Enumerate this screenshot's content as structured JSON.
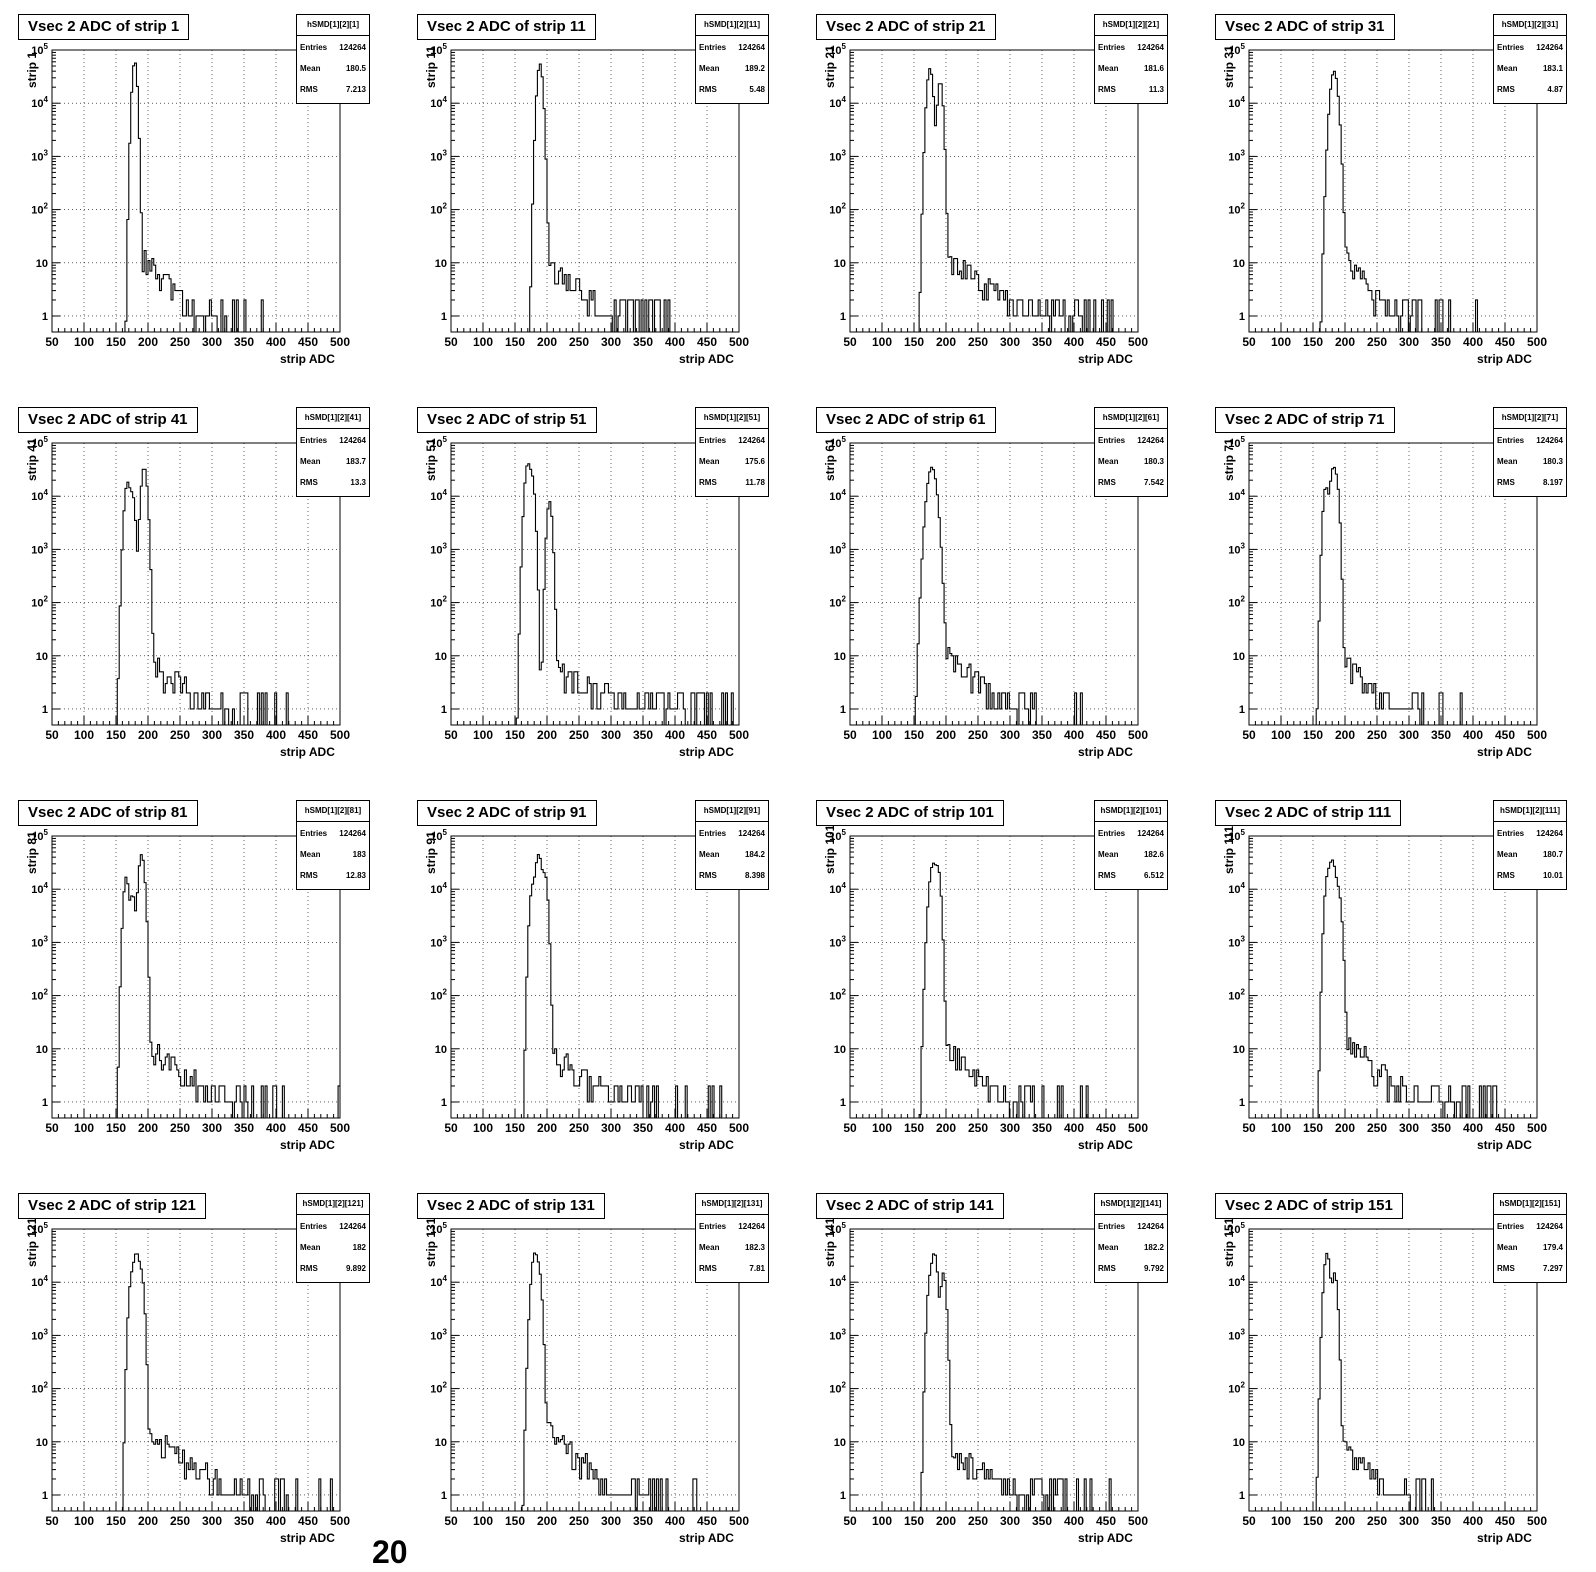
{
  "footer_text": "20",
  "chart_data": [
    {
      "type": "histogram",
      "title": "Vsec 2 ADC of strip 1",
      "hist_name": "hSMD[1][2][1]",
      "stats": {
        "entries": "124264",
        "mean": "180.5",
        "rms": "7.213"
      },
      "xlabel": "strip ADC",
      "ylabel": "strip 1",
      "xlim": [
        50,
        500
      ],
      "ylim": [
        0.5,
        100000
      ],
      "y_scale": "log",
      "grid": true,
      "peaks": [
        {
          "x": 179,
          "height": 55000,
          "width": 1.3
        },
        {
          "x": 181,
          "height": 9000,
          "width": 1.0
        }
      ],
      "tail": {
        "start": 184,
        "end": 480,
        "value_at_start": 15,
        "decay": 0.03
      }
    },
    {
      "type": "histogram",
      "title": "Vsec 2 ADC of strip 11",
      "hist_name": "hSMD[1][2][11]",
      "stats": {
        "entries": "124264",
        "mean": "189.2",
        "rms": "5.48"
      },
      "xlabel": "strip ADC",
      "ylabel": "strip 11",
      "xlim": [
        50,
        500
      ],
      "ylim": [
        0.5,
        100000
      ],
      "y_scale": "log",
      "grid": true,
      "peaks": [
        {
          "x": 189,
          "height": 55000,
          "width": 1.5
        }
      ],
      "tail": {
        "start": 193,
        "end": 490,
        "value_at_start": 12,
        "decay": 0.025
      }
    },
    {
      "type": "histogram",
      "title": "Vsec 2 ADC of strip 21",
      "hist_name": "hSMD[1][2][21]",
      "stats": {
        "entries": "124264",
        "mean": "181.6",
        "rms": "11.3"
      },
      "xlabel": "strip ADC",
      "ylabel": "strip 21",
      "xlim": [
        50,
        500
      ],
      "ylim": [
        0.5,
        100000
      ],
      "y_scale": "log",
      "grid": true,
      "peaks": [
        {
          "x": 175,
          "height": 45000,
          "width": 1.6
        },
        {
          "x": 191,
          "height": 26000,
          "width": 1.4
        }
      ],
      "tail": {
        "start": 196,
        "end": 500,
        "value_at_start": 12,
        "decay": 0.018
      }
    },
    {
      "type": "histogram",
      "title": "Vsec 2 ADC of strip 31",
      "hist_name": "hSMD[1][2][31]",
      "stats": {
        "entries": "124264",
        "mean": "183.1",
        "rms": "4.87"
      },
      "xlabel": "strip ADC",
      "ylabel": "strip 31",
      "xlim": [
        50,
        500
      ],
      "ylim": [
        0.5,
        100000
      ],
      "y_scale": "log",
      "grid": true,
      "peaks": [
        {
          "x": 183,
          "height": 40000,
          "width": 2.0
        }
      ],
      "tail": {
        "start": 188,
        "end": 470,
        "value_at_start": 18,
        "decay": 0.035
      }
    },
    {
      "type": "histogram",
      "title": "Vsec 2 ADC of strip 41",
      "hist_name": "hSMD[1][2][41]",
      "stats": {
        "entries": "124264",
        "mean": "183.7",
        "rms": "13.3"
      },
      "xlabel": "strip ADC",
      "ylabel": "strip 41",
      "xlim": [
        50,
        500
      ],
      "ylim": [
        0.5,
        100000
      ],
      "y_scale": "log",
      "grid": true,
      "peaks": [
        {
          "x": 168,
          "height": 18000,
          "width": 1.6
        },
        {
          "x": 176,
          "height": 10000,
          "width": 1.4
        },
        {
          "x": 194,
          "height": 35000,
          "width": 1.6
        }
      ],
      "tail": {
        "start": 199,
        "end": 500,
        "value_at_start": 9,
        "decay": 0.022
      }
    },
    {
      "type": "histogram",
      "title": "Vsec 2 ADC of strip 51",
      "hist_name": "hSMD[1][2][51]",
      "stats": {
        "entries": "124264",
        "mean": "175.6",
        "rms": "11.78"
      },
      "xlabel": "strip ADC",
      "ylabel": "strip 51",
      "xlim": [
        50,
        500
      ],
      "ylim": [
        0.5,
        100000
      ],
      "y_scale": "log",
      "grid": true,
      "peaks": [
        {
          "x": 170,
          "height": 40000,
          "width": 1.6
        },
        {
          "x": 177,
          "height": 20000,
          "width": 1.4
        },
        {
          "x": 204,
          "height": 8000,
          "width": 1.4
        }
      ],
      "tail": {
        "start": 208,
        "end": 490,
        "value_at_start": 5,
        "decay": 0.012
      }
    },
    {
      "type": "histogram",
      "title": "Vsec 2 ADC of strip 61",
      "hist_name": "hSMD[1][2][61]",
      "stats": {
        "entries": "124264",
        "mean": "180.3",
        "rms": "7.542"
      },
      "xlabel": "strip ADC",
      "ylabel": "strip 61",
      "xlim": [
        50,
        500
      ],
      "ylim": [
        0.5,
        100000
      ],
      "y_scale": "log",
      "grid": true,
      "peaks": [
        {
          "x": 178,
          "height": 35000,
          "width": 2.5
        }
      ],
      "tail": {
        "start": 186,
        "end": 480,
        "value_at_start": 15,
        "decay": 0.025
      }
    },
    {
      "type": "histogram",
      "title": "Vsec 2 ADC of strip 71",
      "hist_name": "hSMD[1][2][71]",
      "stats": {
        "entries": "124264",
        "mean": "180.3",
        "rms": "8.197"
      },
      "xlabel": "strip ADC",
      "ylabel": "strip 71",
      "xlim": [
        50,
        500
      ],
      "ylim": [
        0.5,
        100000
      ],
      "y_scale": "log",
      "grid": true,
      "peaks": [
        {
          "x": 170,
          "height": 15000,
          "width": 1.4
        },
        {
          "x": 182,
          "height": 35000,
          "width": 1.8
        },
        {
          "x": 188,
          "height": 9000,
          "width": 1.2
        }
      ],
      "tail": {
        "start": 193,
        "end": 490,
        "value_at_start": 10,
        "decay": 0.028
      }
    },
    {
      "type": "histogram",
      "title": "Vsec 2 ADC of strip 81",
      "hist_name": "hSMD[1][2][81]",
      "stats": {
        "entries": "124264",
        "mean": "183",
        "rms": "12.83"
      },
      "xlabel": "strip ADC",
      "ylabel": "strip 81",
      "xlim": [
        50,
        500
      ],
      "ylim": [
        0.5,
        100000
      ],
      "y_scale": "log",
      "grid": true,
      "peaks": [
        {
          "x": 166,
          "height": 17000,
          "width": 1.4
        },
        {
          "x": 176,
          "height": 8000,
          "width": 1.4
        },
        {
          "x": 190,
          "height": 45000,
          "width": 1.6
        }
      ],
      "tail": {
        "start": 195,
        "end": 500,
        "value_at_start": 12,
        "decay": 0.022
      }
    },
    {
      "type": "histogram",
      "title": "Vsec 2 ADC of strip 91",
      "hist_name": "hSMD[1][2][91]",
      "stats": {
        "entries": "124264",
        "mean": "184.2",
        "rms": "8.398"
      },
      "xlabel": "strip ADC",
      "ylabel": "strip 91",
      "xlim": [
        50,
        500
      ],
      "ylim": [
        0.5,
        100000
      ],
      "y_scale": "log",
      "grid": true,
      "peaks": [
        {
          "x": 177,
          "height": 10000,
          "width": 1.4
        },
        {
          "x": 187,
          "height": 45000,
          "width": 1.8
        },
        {
          "x": 197,
          "height": 18000,
          "width": 1.4
        }
      ],
      "tail": {
        "start": 201,
        "end": 500,
        "value_at_start": 10,
        "decay": 0.022
      }
    },
    {
      "type": "histogram",
      "title": "Vsec 2 ADC of strip 101",
      "hist_name": "hSMD[1][2][101]",
      "stats": {
        "entries": "124264",
        "mean": "182.6",
        "rms": "6.512"
      },
      "xlabel": "strip ADC",
      "ylabel": "strip 101",
      "xlim": [
        50,
        500
      ],
      "ylim": [
        0.5,
        100000
      ],
      "y_scale": "log",
      "grid": true,
      "peaks": [
        {
          "x": 180,
          "height": 30000,
          "width": 2.0
        },
        {
          "x": 188,
          "height": 20000,
          "width": 1.4
        }
      ],
      "tail": {
        "start": 193,
        "end": 490,
        "value_at_start": 12,
        "decay": 0.025
      }
    },
    {
      "type": "histogram",
      "title": "Vsec 2 ADC of strip 111",
      "hist_name": "hSMD[1][2][111]",
      "stats": {
        "entries": "124264",
        "mean": "180.7",
        "rms": "10.01"
      },
      "xlabel": "strip ADC",
      "ylabel": "strip 111",
      "xlim": [
        50,
        500
      ],
      "ylim": [
        0.5,
        100000
      ],
      "y_scale": "log",
      "grid": true,
      "peaks": [
        {
          "x": 172,
          "height": 12000,
          "width": 1.4
        },
        {
          "x": 180,
          "height": 35000,
          "width": 2.0
        },
        {
          "x": 190,
          "height": 8000,
          "width": 1.6
        }
      ],
      "tail": {
        "start": 195,
        "end": 500,
        "value_at_start": 15,
        "decay": 0.022
      }
    },
    {
      "type": "histogram",
      "title": "Vsec 2 ADC of strip 121",
      "hist_name": "hSMD[1][2][121]",
      "stats": {
        "entries": "124264",
        "mean": "182",
        "rms": "9.892"
      },
      "xlabel": "strip ADC",
      "ylabel": "strip 121",
      "xlim": [
        50,
        500
      ],
      "ylim": [
        0.5,
        100000
      ],
      "y_scale": "log",
      "grid": true,
      "peaks": [
        {
          "x": 174,
          "height": 10000,
          "width": 1.4
        },
        {
          "x": 182,
          "height": 35000,
          "width": 1.8
        },
        {
          "x": 190,
          "height": 12000,
          "width": 1.4
        }
      ],
      "tail": {
        "start": 195,
        "end": 500,
        "value_at_start": 15,
        "decay": 0.02
      }
    },
    {
      "type": "histogram",
      "title": "Vsec 2 ADC of strip 131",
      "hist_name": "hSMD[1][2][131]",
      "stats": {
        "entries": "124264",
        "mean": "182.3",
        "rms": "7.81"
      },
      "xlabel": "strip ADC",
      "ylabel": "strip 131",
      "xlim": [
        50,
        500
      ],
      "ylim": [
        0.5,
        100000
      ],
      "y_scale": "log",
      "grid": true,
      "peaks": [
        {
          "x": 181,
          "height": 35000,
          "width": 1.8
        },
        {
          "x": 188,
          "height": 12000,
          "width": 1.4
        }
      ],
      "tail": {
        "start": 193,
        "end": 490,
        "value_at_start": 20,
        "decay": 0.025
      }
    },
    {
      "type": "histogram",
      "title": "Vsec 2 ADC of strip 141",
      "hist_name": "hSMD[1][2][141]",
      "stats": {
        "entries": "124264",
        "mean": "182.2",
        "rms": "9.792"
      },
      "xlabel": "strip ADC",
      "ylabel": "strip 141",
      "xlim": [
        50,
        500
      ],
      "ylim": [
        0.5,
        100000
      ],
      "y_scale": "log",
      "grid": true,
      "peaks": [
        {
          "x": 175,
          "height": 10000,
          "width": 1.4
        },
        {
          "x": 182,
          "height": 35000,
          "width": 1.6
        },
        {
          "x": 196,
          "height": 15000,
          "width": 1.4
        }
      ],
      "tail": {
        "start": 200,
        "end": 490,
        "value_at_start": 8,
        "decay": 0.02
      }
    },
    {
      "type": "histogram",
      "title": "Vsec 2 ADC of strip 151",
      "hist_name": "hSMD[1][2][151]",
      "stats": {
        "entries": "124264",
        "mean": "179.4",
        "rms": "7.297"
      },
      "xlabel": "strip ADC",
      "ylabel": "strip 151",
      "xlim": [
        50,
        500
      ],
      "ylim": [
        0.5,
        100000
      ],
      "y_scale": "log",
      "grid": true,
      "peaks": [
        {
          "x": 172,
          "height": 35000,
          "width": 1.6
        },
        {
          "x": 184,
          "height": 15000,
          "width": 1.4
        }
      ],
      "tail": {
        "start": 189,
        "end": 500,
        "value_at_start": 10,
        "decay": 0.028
      }
    }
  ]
}
